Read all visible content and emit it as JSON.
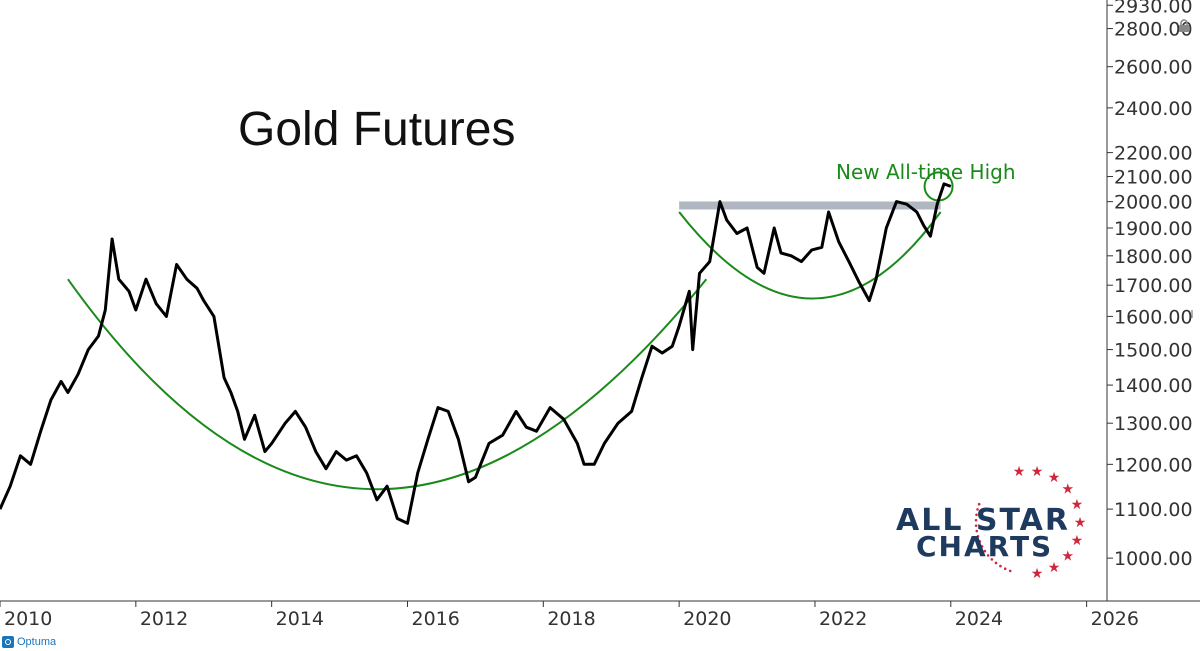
{
  "brand": {
    "optuma_label": "Optuma",
    "optuma_icon": "optuma-logo-icon"
  },
  "watermark": {
    "line1": "ALL STAR",
    "line2": "CHARTS",
    "text_color": "#1f3a5f",
    "star_color": "#d0273d"
  },
  "colors": {
    "price": "#000000",
    "curve": "#1a8a1a",
    "resistance": "#b0b7c0",
    "annotation": "#1a8a1a"
  },
  "chart_data": {
    "type": "line",
    "title": "Gold Futures",
    "annotation": "New All-time High",
    "y_scale": "log",
    "ylim": [
      920,
      2960
    ],
    "xlim": [
      2010.0,
      2026.3
    ],
    "x_ticks": [
      "2010",
      "2012",
      "2014",
      "2016",
      "2018",
      "2020",
      "2022",
      "2024",
      "2026"
    ],
    "y_ticks": [
      "2930.00",
      "2800.00",
      "2600.00",
      "2400.00",
      "2200.00",
      "2100.00",
      "2000.00",
      "1900.00",
      "1800.00",
      "1700.00",
      "1600.00",
      "1500.00",
      "1400.00",
      "1300.00",
      "1200.00",
      "1100.00",
      "1000.00"
    ],
    "resistance_level": 1985,
    "series": [
      {
        "x": [
          2010.0,
          2010.15,
          2010.3,
          2010.45,
          2010.6,
          2010.75,
          2010.9,
          2011.0,
          2011.15,
          2011.3,
          2011.45,
          2011.55,
          2011.65,
          2011.75,
          2011.9,
          2012.0,
          2012.15,
          2012.3,
          2012.45,
          2012.6,
          2012.75,
          2012.9,
          2013.0,
          2013.15,
          2013.3,
          2013.4,
          2013.5,
          2013.6,
          2013.75,
          2013.9,
          2014.0,
          2014.2,
          2014.35,
          2014.5,
          2014.65,
          2014.8,
          2014.95,
          2015.1,
          2015.25,
          2015.4,
          2015.55,
          2015.7,
          2015.85,
          2016.0,
          2016.15,
          2016.3,
          2016.45,
          2016.6,
          2016.75,
          2016.9,
          2017.0,
          2017.2,
          2017.4,
          2017.6,
          2017.75,
          2017.9,
          2018.1,
          2018.3,
          2018.5,
          2018.6,
          2018.75,
          2018.9,
          2019.1,
          2019.3,
          2019.45,
          2019.6,
          2019.75,
          2019.9,
          2020.0,
          2020.15,
          2020.2,
          2020.3,
          2020.45,
          2020.6,
          2020.7,
          2020.85,
          2021.0,
          2021.15,
          2021.25,
          2021.4,
          2021.5,
          2021.65,
          2021.8,
          2021.95,
          2022.1,
          2022.2,
          2022.35,
          2022.5,
          2022.65,
          2022.8,
          2022.9,
          2023.05,
          2023.2,
          2023.35,
          2023.5,
          2023.6,
          2023.7,
          2023.8,
          2023.9,
          2024.0
        ],
        "values": [
          1100,
          1150,
          1220,
          1200,
          1280,
          1360,
          1410,
          1380,
          1430,
          1500,
          1540,
          1620,
          1860,
          1720,
          1680,
          1620,
          1720,
          1640,
          1600,
          1770,
          1720,
          1690,
          1650,
          1600,
          1420,
          1380,
          1330,
          1260,
          1320,
          1230,
          1250,
          1300,
          1330,
          1290,
          1230,
          1190,
          1230,
          1210,
          1220,
          1180,
          1120,
          1150,
          1080,
          1070,
          1180,
          1260,
          1340,
          1330,
          1260,
          1160,
          1170,
          1250,
          1270,
          1330,
          1290,
          1280,
          1340,
          1310,
          1250,
          1200,
          1200,
          1250,
          1300,
          1330,
          1420,
          1510,
          1490,
          1510,
          1570,
          1680,
          1500,
          1740,
          1780,
          2000,
          1930,
          1880,
          1900,
          1760,
          1740,
          1900,
          1810,
          1800,
          1780,
          1820,
          1830,
          1960,
          1850,
          1780,
          1710,
          1650,
          1720,
          1900,
          2000,
          1990,
          1960,
          1910,
          1870,
          1990,
          2070,
          2060
        ]
      }
    ]
  }
}
